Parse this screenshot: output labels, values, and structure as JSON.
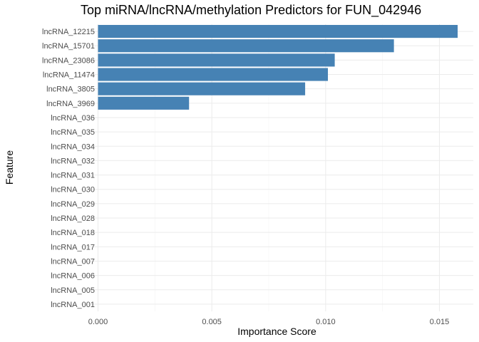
{
  "chart_data": {
    "type": "bar",
    "orientation": "horizontal",
    "title": "Top miRNA/lncRNA/methylation Predictors for FUN_042946",
    "xlabel": "Importance Score",
    "ylabel": "Feature",
    "xlim": [
      0,
      0.0165
    ],
    "xticks": [
      0.0,
      0.005,
      0.01,
      0.015
    ],
    "xtick_labels": [
      "0.000",
      "0.005",
      "0.010",
      "0.015"
    ],
    "grid": true,
    "bar_color": "#4682B4",
    "categories": [
      "lncRNA_12215",
      "lncRNA_15701",
      "lncRNA_23086",
      "lncRNA_11474",
      "lncRNA_3805",
      "lncRNA_3969",
      "lncRNA_036",
      "lncRNA_035",
      "lncRNA_034",
      "lncRNA_032",
      "lncRNA_031",
      "lncRNA_030",
      "lncRNA_029",
      "lncRNA_028",
      "lncRNA_018",
      "lncRNA_017",
      "lncRNA_007",
      "lncRNA_006",
      "lncRNA_005",
      "lncRNA_001"
    ],
    "values": [
      0.0158,
      0.013,
      0.0104,
      0.0101,
      0.0091,
      0.004,
      0,
      0,
      0,
      0,
      0,
      0,
      0,
      0,
      0,
      0,
      0,
      0,
      0,
      0
    ]
  }
}
